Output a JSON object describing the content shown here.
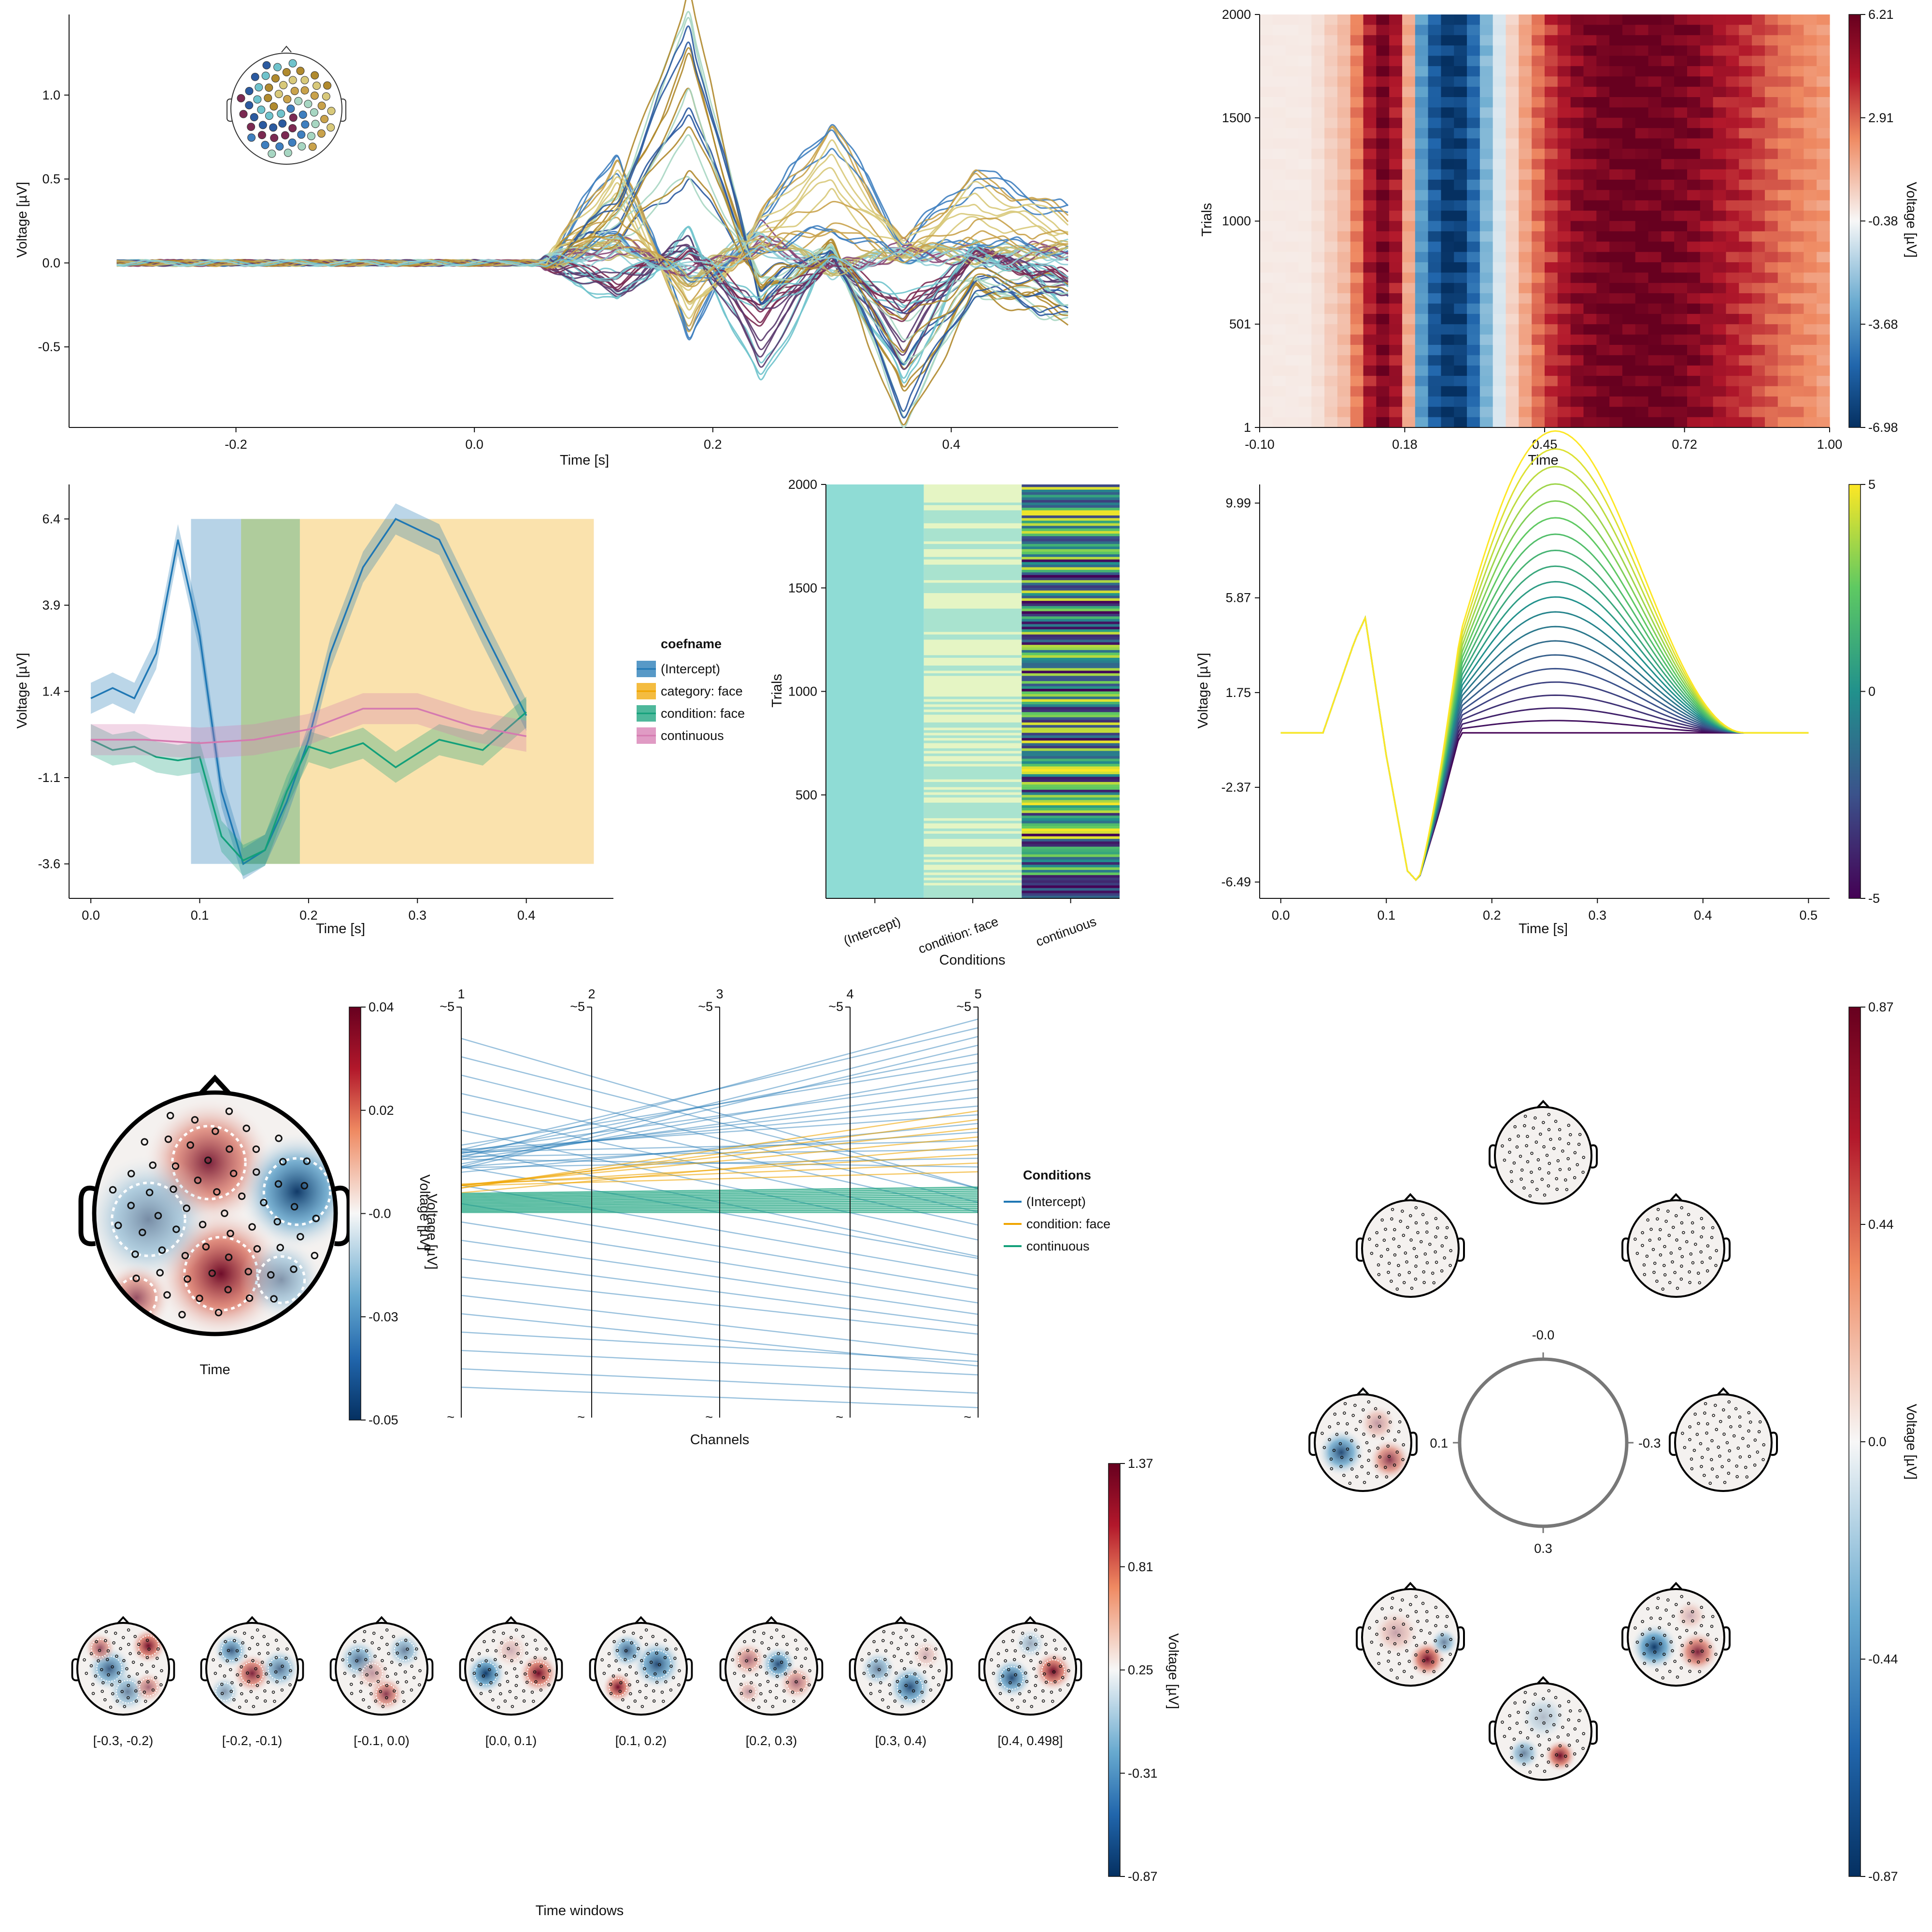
{
  "colors": {
    "cb_red": "#8b0a1f",
    "cb_white": "#f7f7f7",
    "cb_blue": "#08306b",
    "viridis_low": "#440154",
    "viridis_mid": "#21918c",
    "viridis_high": "#fde725",
    "intercept": "#1f77b4",
    "category_face": "#f0a500",
    "condition_face": "#13a07a",
    "continuous": "#d57ab0"
  },
  "chart_data": [
    {
      "id": "butterfly",
      "type": "line",
      "xlabel": "Time [s]",
      "ylabel": "Voltage [µV]",
      "xticks": [
        "-0.2",
        "0.0",
        "0.2",
        "0.4"
      ],
      "yticks": [
        "-0.5",
        "0.0",
        "0.5",
        "1.0"
      ],
      "xlim": [
        -0.34,
        0.54
      ],
      "ylim": [
        -0.98,
        1.48
      ],
      "n_channels": 64,
      "series": [
        {
          "x": [
            -0.3,
            -0.1,
            0.06,
            0.12,
            0.18,
            0.24,
            0.3,
            0.36,
            0.42,
            0.5
          ],
          "values": [
            0,
            0,
            0,
            0.55,
            -0.35,
            0.25,
            0.7,
            0.1,
            0.45,
            0.25
          ]
        },
        {
          "x": [
            -0.3,
            -0.1,
            0.06,
            0.12,
            0.18,
            0.24,
            0.3,
            0.36,
            0.42,
            0.5
          ],
          "values": [
            0,
            0,
            0,
            0.35,
            1.35,
            -0.2,
            0.1,
            -0.85,
            -0.15,
            -0.3
          ]
        },
        {
          "x": [
            -0.3,
            -0.1,
            0.06,
            0.12,
            0.18,
            0.24,
            0.3,
            0.36,
            0.42,
            0.5
          ],
          "values": [
            0,
            0,
            0,
            -0.2,
            0.15,
            -0.6,
            0.05,
            -0.6,
            0.1,
            -0.2
          ]
        },
        {
          "x": [
            -0.3,
            -0.1,
            0.06,
            0.12,
            0.18,
            0.24,
            0.3,
            0.36,
            0.42,
            0.5
          ],
          "values": [
            0,
            0,
            0,
            0.15,
            -0.1,
            0.2,
            -0.05,
            0.1,
            0.05,
            0.1
          ]
        }
      ]
    },
    {
      "id": "erpimage",
      "type": "heatmap",
      "xlabel": "Time",
      "ylabel": "Trials",
      "xticks": [
        "-0.10",
        "0.18",
        "0.45",
        "0.72",
        "1.00"
      ],
      "yticks": [
        "1",
        "501",
        "1000",
        "1500",
        "2000"
      ],
      "colorbar_label": "Voltage [µV]",
      "colorbar_ticks": [
        "6.21",
        "2.91",
        "-0.38",
        "-3.68",
        "-6.98"
      ],
      "clim": [
        -6.98,
        6.21
      ],
      "time": [
        -0.1,
        0.0,
        0.07,
        0.1,
        0.13,
        0.16,
        0.19,
        0.21,
        0.25,
        0.28,
        0.31,
        0.34,
        0.38,
        0.45,
        0.52,
        0.6,
        0.65,
        0.72,
        0.8,
        0.9,
        1.0
      ],
      "voltage": [
        0.3,
        0.3,
        1.5,
        3.5,
        6,
        5,
        1.5,
        -3,
        -6.5,
        -6.9,
        -5,
        -2,
        0.5,
        3.5,
        5.5,
        6.2,
        6.2,
        5.8,
        4.5,
        3,
        2
      ]
    },
    {
      "id": "coefficients",
      "type": "line",
      "xlabel": "Time [s]",
      "ylabel": "Voltage [µV]",
      "xticks": [
        "0.0",
        "0.1",
        "0.2",
        "0.3",
        "0.4"
      ],
      "yticks": [
        "6.4",
        "3.9",
        "1.4",
        "-1.1",
        "-3.6"
      ],
      "xlim": [
        -0.02,
        0.48
      ],
      "ylim": [
        -4.6,
        7.4
      ],
      "legend_title": "coefname",
      "legend": [
        "(Intercept)",
        "category: face",
        "condition: face",
        "continuous"
      ],
      "shaded_windows": [
        {
          "from": 0.092,
          "to": 0.138,
          "series": "(Intercept)"
        },
        {
          "from": 0.138,
          "to": 0.192,
          "series": "category: face"
        },
        {
          "from": 0.138,
          "to": 0.192,
          "series": "condition: face"
        },
        {
          "from": 0.192,
          "to": 0.462,
          "series": "category: face"
        }
      ],
      "series": [
        {
          "name": "(Intercept)",
          "x": [
            0,
            0.02,
            0.04,
            0.06,
            0.08,
            0.1,
            0.12,
            0.14,
            0.16,
            0.18,
            0.2,
            0.22,
            0.25,
            0.28,
            0.32,
            0.36,
            0.4
          ],
          "values": [
            1.2,
            1.5,
            1.2,
            2.5,
            5.8,
            3,
            -1.5,
            -3.6,
            -3.2,
            -1.8,
            0,
            2.5,
            5,
            6.4,
            5.8,
            3.2,
            0.7
          ]
        },
        {
          "name": "condition: face",
          "x": [
            0,
            0.02,
            0.04,
            0.06,
            0.08,
            0.1,
            0.12,
            0.14,
            0.16,
            0.18,
            0.2,
            0.22,
            0.25,
            0.28,
            0.32,
            0.36,
            0.4
          ],
          "values": [
            0,
            -0.3,
            -0.2,
            -0.5,
            -0.6,
            -0.5,
            -2.8,
            -3.5,
            -3.2,
            -1.5,
            -0.2,
            -0.4,
            -0.1,
            -0.8,
            0,
            -0.3,
            0.8
          ]
        },
        {
          "name": "continuous",
          "x": [
            0,
            0.05,
            0.1,
            0.15,
            0.2,
            0.25,
            0.3,
            0.35,
            0.4
          ],
          "values": [
            0,
            0,
            -0.1,
            0,
            0.3,
            0.9,
            0.9,
            0.4,
            0.1
          ]
        }
      ]
    },
    {
      "id": "designmatrix",
      "type": "heatmap",
      "xlabel": "Conditions",
      "ylabel": "Trials",
      "categories": [
        "(Intercept)",
        "condition: face",
        "continuous"
      ],
      "yticks": [
        "500",
        "1000",
        "1500",
        "2000"
      ]
    },
    {
      "id": "effects",
      "type": "line",
      "xlabel": "Time [s]",
      "ylabel": "Voltage [µV]",
      "xticks": [
        "0.0",
        "0.1",
        "0.2",
        "0.3",
        "0.4",
        "0.5"
      ],
      "yticks": [
        "9.99",
        "5.87",
        "1.75",
        "-2.37",
        "-6.49"
      ],
      "xlim": [
        -0.02,
        0.52
      ],
      "ylim": [
        -7.2,
        10.8
      ],
      "colorbar_ticks": [
        "5",
        "0",
        "-5"
      ],
      "n_lines": 21,
      "x": [
        0,
        0.04,
        0.07,
        0.08,
        0.1,
        0.12,
        0.13,
        0.15,
        0.17,
        0.2,
        0.25,
        0.3,
        0.35,
        0.4,
        0.44,
        0.5
      ],
      "base_values": [
        0,
        0,
        4,
        5,
        -1,
        -6,
        -6.5,
        -3.5,
        0,
        0,
        0,
        0,
        0,
        0,
        0,
        0
      ],
      "bump_max": 10.5
    },
    {
      "id": "topoplot",
      "type": "heatmap",
      "xlabel": "Time",
      "colorbar_label": "Voltage [µV]",
      "colorbar_ticks": [
        "0.04",
        "0.02",
        "-0.0",
        "-0.03",
        "-0.05"
      ]
    },
    {
      "id": "parallel",
      "type": "line",
      "xlabel": "Channels",
      "ylabel": "Voltage [µV]",
      "axes": [
        "1",
        "2",
        "3",
        "4",
        "5"
      ],
      "axis_tick_label": "~5",
      "axis_bottom_label": "~",
      "legend_title": "Conditions",
      "legend": [
        "(Intercept)",
        "condition: face",
        "continuous"
      ]
    },
    {
      "id": "toposeries",
      "type": "heatmap",
      "xlabel": "Time windows",
      "colorbar_label": "Voltage [µV]",
      "colorbar_ticks": [
        "1.37",
        "0.81",
        "0.25",
        "-0.31",
        "-0.87"
      ],
      "windows": [
        "[-0.3, -0.2)",
        "[-0.2, -0.1)",
        "[-0.1, 0.0)",
        "[0.0, 0.1)",
        "[0.1, 0.2)",
        "[0.2, 0.3)",
        "[0.3, 0.4)",
        "[0.4, 0.498]"
      ]
    },
    {
      "id": "circular",
      "type": "heatmap",
      "colorbar_label": "Voltage [µV]",
      "colorbar_ticks": [
        "0.87",
        "0.44",
        "0.0",
        "-0.44",
        "-0.87"
      ],
      "angle_labels": [
        "-0.0",
        "0.1",
        "-0.3",
        "0.3"
      ]
    }
  ]
}
